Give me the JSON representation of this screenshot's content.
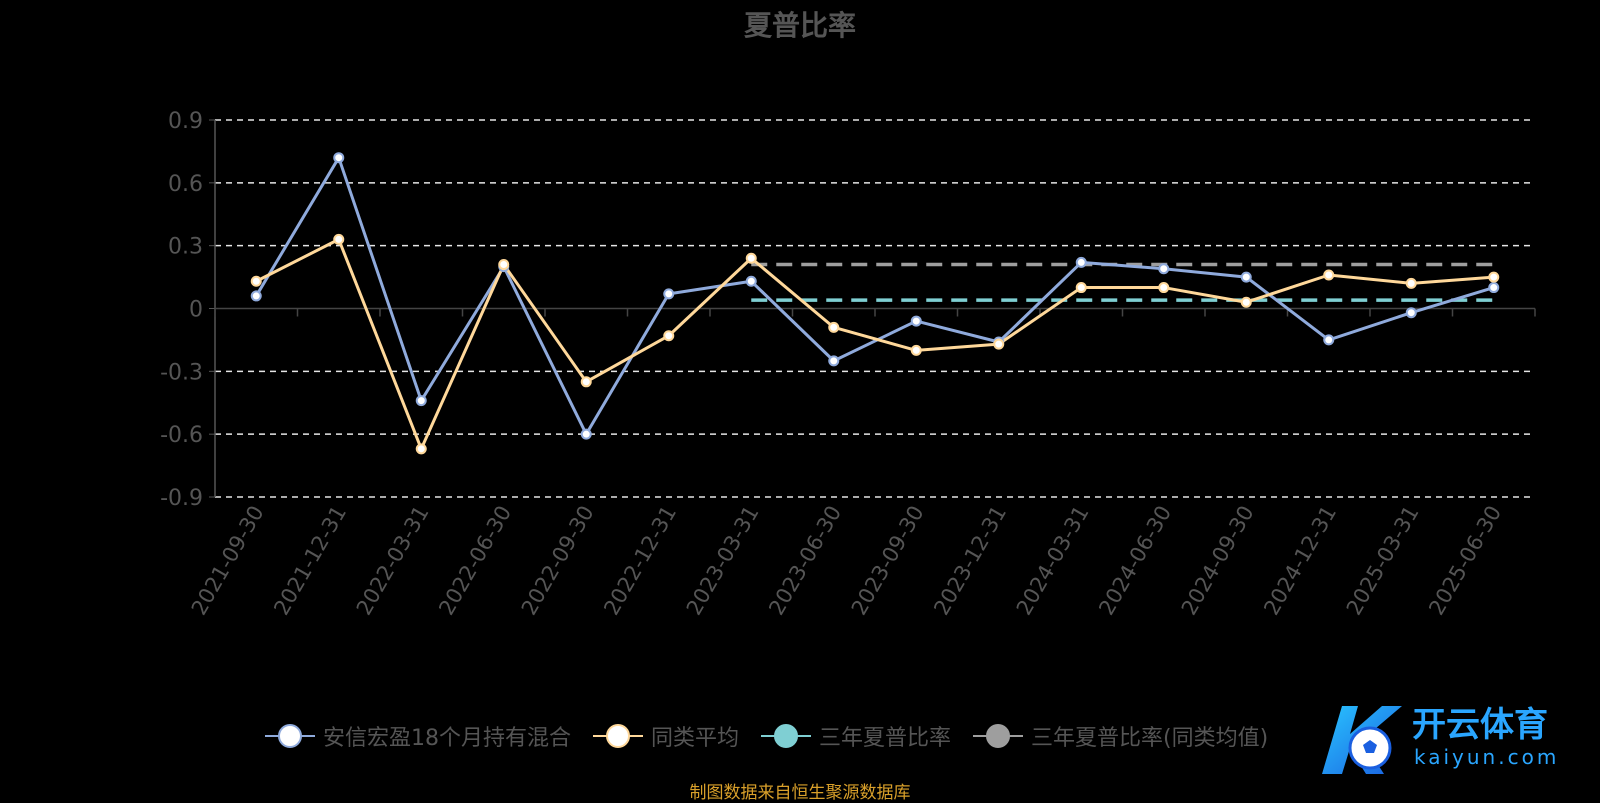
{
  "chart_data": {
    "type": "line",
    "title": "夏普比率",
    "xlabel": "",
    "ylabel": "",
    "ylim": [
      -0.9,
      0.9
    ],
    "y_ticks": [
      "0.9",
      "0.6",
      "0.3",
      "0",
      "-0.3",
      "-0.6",
      "-0.9"
    ],
    "categories": [
      "2021-09-30",
      "2021-12-31",
      "2022-03-31",
      "2022-06-30",
      "2022-09-30",
      "2022-12-31",
      "2023-03-31",
      "2023-06-30",
      "2023-09-30",
      "2023-12-31",
      "2024-03-31",
      "2024-06-30",
      "2024-09-30",
      "2024-12-31",
      "2025-03-31",
      "2025-06-30"
    ],
    "grid": true,
    "legend_position": "bottom",
    "series": [
      {
        "name": "安信宏盈18个月持有混合",
        "color": "#8faadc",
        "values": [
          0.06,
          0.72,
          -0.44,
          0.2,
          -0.6,
          0.07,
          0.13,
          -0.25,
          -0.06,
          -0.16,
          0.22,
          0.19,
          0.15,
          -0.15,
          -0.02,
          0.1
        ]
      },
      {
        "name": "同类平均",
        "color": "#ffd89a",
        "values": [
          0.13,
          0.33,
          -0.67,
          0.21,
          -0.35,
          -0.13,
          0.24,
          -0.09,
          -0.2,
          -0.17,
          0.1,
          0.1,
          0.03,
          0.16,
          0.12,
          0.15
        ]
      },
      {
        "name": "三年夏普比率",
        "color": "#7fcfd3",
        "start_category": "2023-03-31",
        "end_category": "2025-06-30",
        "value": 0.04
      },
      {
        "name": "三年夏普比率(同类均值)",
        "color": "#9e9e9e",
        "start_category": "2023-03-31",
        "end_category": "2025-06-30",
        "value": 0.21
      }
    ]
  },
  "source_note": "制图数据来自恒生聚源数据库",
  "watermark": {
    "brand": "开云体育",
    "domain": "kaiyun.com"
  }
}
